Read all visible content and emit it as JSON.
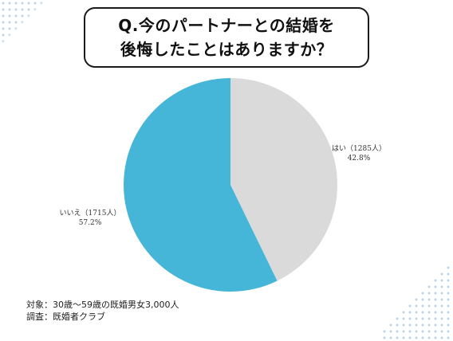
{
  "title_lines": [
    "Q.今のパートナーとの結婚を",
    "後悔したことはありますか？"
  ],
  "chart_data": {
    "type": "pie",
    "slices": [
      {
        "label": "はい（1285人）",
        "count": 1285,
        "percent": "42.8%",
        "value": 42.8,
        "color": "#dadada"
      },
      {
        "label": "いいえ（1715人）",
        "count": 1715,
        "percent": "57.2%",
        "value": 57.2,
        "color": "#45b5d8"
      }
    ],
    "start": "12 o'clock",
    "direction": "clockwise"
  },
  "footer": {
    "target": "対象：30歳〜59歳の既婚男女3,000人",
    "survey": "調査：既婚者クラブ"
  }
}
